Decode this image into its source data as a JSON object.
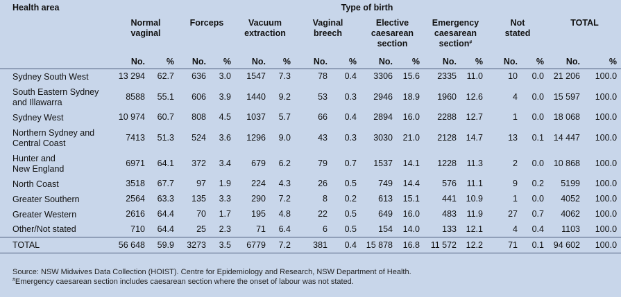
{
  "header": {
    "health_area": "Health area",
    "type_of_birth": "Type of birth",
    "groups": [
      {
        "l1": "Normal",
        "l2": "vaginal",
        "l3": ""
      },
      {
        "l1": "Forceps",
        "l2": "",
        "l3": ""
      },
      {
        "l1": "Vacuum",
        "l2": "extraction",
        "l3": ""
      },
      {
        "l1": "Vaginal",
        "l2": "breech",
        "l3": ""
      },
      {
        "l1": "Elective",
        "l2": "caesarean",
        "l3": "section"
      },
      {
        "l1": "Emergency",
        "l2": "caesarean",
        "l3": "section",
        "sup": "#"
      },
      {
        "l1": "Not",
        "l2": "stated",
        "l3": ""
      },
      {
        "l1": "TOTAL",
        "l2": "",
        "l3": ""
      }
    ],
    "no": "No.",
    "pct": "%"
  },
  "rows": [
    {
      "n1": "Sydney South West",
      "n2": "",
      "v": [
        "13 294",
        "62.7",
        "636",
        "3.0",
        "1547",
        "7.3",
        "78",
        "0.4",
        "3306",
        "15.6",
        "2335",
        "11.0",
        "10",
        "0.0",
        "21 206",
        "100.0"
      ]
    },
    {
      "n1": "South Eastern Sydney",
      "n2": "and Illawarra",
      "v": [
        "8588",
        "55.1",
        "606",
        "3.9",
        "1440",
        "9.2",
        "53",
        "0.3",
        "2946",
        "18.9",
        "1960",
        "12.6",
        "4",
        "0.0",
        "15 597",
        "100.0"
      ]
    },
    {
      "n1": "Sydney West",
      "n2": "",
      "v": [
        "10 974",
        "60.7",
        "808",
        "4.5",
        "1037",
        "5.7",
        "66",
        "0.4",
        "2894",
        "16.0",
        "2288",
        "12.7",
        "1",
        "0.0",
        "18 068",
        "100.0"
      ]
    },
    {
      "n1": "Northern Sydney and",
      "n2": "Central Coast",
      "v": [
        "7413",
        "51.3",
        "524",
        "3.6",
        "1296",
        "9.0",
        "43",
        "0.3",
        "3030",
        "21.0",
        "2128",
        "14.7",
        "13",
        "0.1",
        "14 447",
        "100.0"
      ]
    },
    {
      "n1": "Hunter and",
      "n2": "New England",
      "v": [
        "6971",
        "64.1",
        "372",
        "3.4",
        "679",
        "6.2",
        "79",
        "0.7",
        "1537",
        "14.1",
        "1228",
        "11.3",
        "2",
        "0.0",
        "10 868",
        "100.0"
      ]
    },
    {
      "n1": "North Coast",
      "n2": "",
      "v": [
        "3518",
        "67.7",
        "97",
        "1.9",
        "224",
        "4.3",
        "26",
        "0.5",
        "749",
        "14.4",
        "576",
        "11.1",
        "9",
        "0.2",
        "5199",
        "100.0"
      ]
    },
    {
      "n1": "Greater Southern",
      "n2": "",
      "v": [
        "2564",
        "63.3",
        "135",
        "3.3",
        "290",
        "7.2",
        "8",
        "0.2",
        "613",
        "15.1",
        "441",
        "10.9",
        "1",
        "0.0",
        "4052",
        "100.0"
      ]
    },
    {
      "n1": "Greater Western",
      "n2": "",
      "v": [
        "2616",
        "64.4",
        "70",
        "1.7",
        "195",
        "4.8",
        "22",
        "0.5",
        "649",
        "16.0",
        "483",
        "11.9",
        "27",
        "0.7",
        "4062",
        "100.0"
      ]
    },
    {
      "n1": "Other/Not stated",
      "n2": "",
      "v": [
        "710",
        "64.4",
        "25",
        "2.3",
        "71",
        "6.4",
        "6",
        "0.5",
        "154",
        "14.0",
        "133",
        "12.1",
        "4",
        "0.4",
        "1103",
        "100.0"
      ]
    }
  ],
  "total": {
    "name": "TOTAL",
    "v": [
      "56 648",
      "59.9",
      "3273",
      "3.5",
      "6779",
      "7.2",
      "381",
      "0.4",
      "15 878",
      "16.8",
      "11 572",
      "12.2",
      "71",
      "0.1",
      "94 602",
      "100.0"
    ]
  },
  "footer": {
    "source": "Source: NSW Midwives Data Collection (HOIST). Centre for Epidemiology and Research, NSW Department of Health.",
    "note_mark": "#",
    "note": "Emergency caesarean section includes caesarean section where the onset of labour was not stated."
  }
}
